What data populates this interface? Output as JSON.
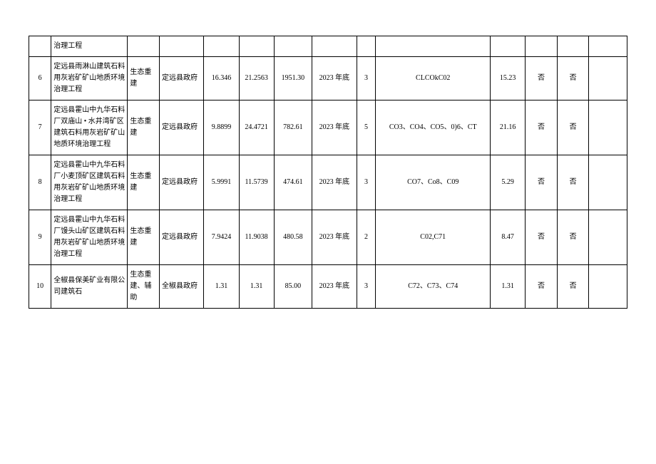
{
  "table": {
    "rows": [
      {
        "idx": "",
        "name": "治理工程",
        "type": "",
        "gov": "",
        "num1": "",
        "num2": "",
        "num3": "",
        "year": "",
        "count": "",
        "code": "",
        "val": "",
        "yn1": "",
        "yn2": "",
        "last": ""
      },
      {
        "idx": "6",
        "name": "定远县雨淋山建筑石料用灰岩矿矿山地质环境治理工程",
        "type": "生态重建",
        "gov": "定远县政府",
        "num1": "16.346",
        "num2": "21.2563",
        "num3": "1951.30",
        "year": "2023 年底",
        "count": "3",
        "code": "CLCOkC02",
        "val": "15.23",
        "yn1": "否",
        "yn2": "否",
        "last": ""
      },
      {
        "idx": "7",
        "name": "定远县霍山中九华石料厂双庙山 • 水井湾矿区建筑石料用灰岩矿矿山地质环境治理工程",
        "type": "生态重建",
        "gov": "定远县政府",
        "num1": "9.8899",
        "num2": "24.4721",
        "num3": "782.61",
        "year": "2023 年底",
        "count": "5",
        "code": "CO3、CO4、CO5、0)6、CT",
        "val": "21.16",
        "yn1": "否",
        "yn2": "否",
        "last": ""
      },
      {
        "idx": "8",
        "name": "定远县霍山中九华石料厂小麦顶矿区建筑石料用灰岩矿矿山地质环境治理工程",
        "type": "生态重建",
        "gov": "定远县政府",
        "num1": "5.9991",
        "num2": "11.5739",
        "num3": "474.61",
        "year": "2023 年底",
        "count": "3",
        "code": "CO7、Co8、C09",
        "val": "5.29",
        "yn1": "否",
        "yn2": "否",
        "last": ""
      },
      {
        "idx": "9",
        "name": "定远县霍山中九华石料厂馒头山矿区建筑石料用灰岩矿矿山地质环境治理工程",
        "type": "生态重建",
        "gov": "定远县政府",
        "num1": "7.9424",
        "num2": "11.9038",
        "num3": "480.58",
        "year": "2023 年底",
        "count": "2",
        "code": "C02,C71",
        "val": "8.47",
        "yn1": "否",
        "yn2": "否",
        "last": ""
      },
      {
        "idx": "10",
        "name": "全椒县保美矿业有限公司建筑石",
        "type": "生态重建、辅助",
        "gov": "全椒县政府",
        "num1": "1.31",
        "num2": "1.31",
        "num3": "85.00",
        "year": "2023 年底",
        "count": "3",
        "code": "C72、C73、C74",
        "val": "1.31",
        "yn1": "否",
        "yn2": "否",
        "last": ""
      }
    ]
  }
}
